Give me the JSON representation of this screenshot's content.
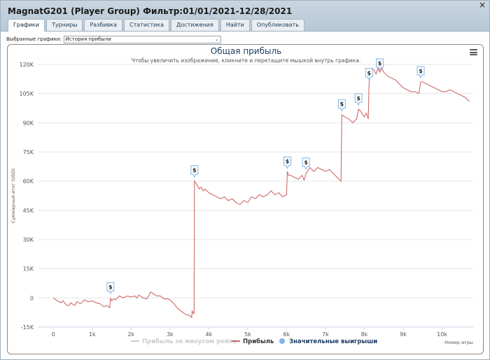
{
  "window": {
    "title": "MagnatG201 (Player Group) Фильтр:01/01/2021-12/28/2021",
    "close_label": "×"
  },
  "tabs": [
    {
      "label": "Графики",
      "active": true
    },
    {
      "label": "Турниры"
    },
    {
      "label": "Разбивка"
    },
    {
      "label": "Статистика"
    },
    {
      "label": "Достижения"
    },
    {
      "label": "Найти"
    },
    {
      "label": "Опубликовать"
    }
  ],
  "selector": {
    "label": "Выбранные графики:",
    "value": "История прибыли"
  },
  "chart_menu_icon": "hamburger-menu-icon",
  "chart_data": {
    "type": "line",
    "title": "Общая прибыль",
    "subtitle": "Чтобы увеличить изображение, кликните и перетащите мышкой внутрь графика.",
    "xlabel": "Номер игры",
    "ylabel": "Суммарный итог (USD)",
    "xlim": [
      -400,
      10800
    ],
    "ylim": [
      -15000,
      120000
    ],
    "x_ticks": [
      "0",
      "1k",
      "2k",
      "3k",
      "4k",
      "5k",
      "6k",
      "7k",
      "8k",
      "9k",
      "10k"
    ],
    "y_ticks": [
      "-15K",
      "0",
      "15K",
      "30K",
      "45K",
      "60K",
      "75K",
      "90K",
      "105K",
      "120K"
    ],
    "colors": {
      "profit": "#d06a6a",
      "rake": "#d0d0d0",
      "big_win": "#7cb5ec",
      "title": "#1f3e63"
    },
    "legend": [
      {
        "name": "Прибыль за минусом рейка",
        "color": "#cccccc",
        "symbol": "line",
        "hidden": true
      },
      {
        "name": "Прибыль",
        "color": "#d06a6a",
        "symbol": "line"
      },
      {
        "name": "Значительные выигрыши",
        "color": "#7cb5ec",
        "symbol": "circle"
      }
    ],
    "series": [
      {
        "name": "Прибыль",
        "points": [
          [
            0,
            0
          ],
          [
            100,
            -1500
          ],
          [
            200,
            -2500
          ],
          [
            250,
            -1500
          ],
          [
            330,
            -3500
          ],
          [
            400,
            -4000
          ],
          [
            450,
            -2500
          ],
          [
            550,
            -4000
          ],
          [
            600,
            -2000
          ],
          [
            700,
            -3000
          ],
          [
            800,
            -1000
          ],
          [
            900,
            -2000
          ],
          [
            1000,
            -1500
          ],
          [
            1100,
            -2500
          ],
          [
            1200,
            -3000
          ],
          [
            1300,
            -4500
          ],
          [
            1380,
            -4000
          ],
          [
            1450,
            -5000
          ],
          [
            1470,
            0
          ],
          [
            1500,
            -1500
          ],
          [
            1550,
            -500
          ],
          [
            1600,
            -1000
          ],
          [
            1700,
            1000
          ],
          [
            1800,
            0
          ],
          [
            1900,
            1000
          ],
          [
            2000,
            500
          ],
          [
            2100,
            1000
          ],
          [
            2150,
            0
          ],
          [
            2200,
            1500
          ],
          [
            2300,
            0
          ],
          [
            2400,
            -500
          ],
          [
            2450,
            1000
          ],
          [
            2500,
            3000
          ],
          [
            2550,
            2500
          ],
          [
            2650,
            1000
          ],
          [
            2750,
            1000
          ],
          [
            2850,
            -500
          ],
          [
            2950,
            -500
          ],
          [
            3000,
            -1000
          ],
          [
            3100,
            -3000
          ],
          [
            3200,
            -5500
          ],
          [
            3300,
            -7000
          ],
          [
            3400,
            -8500
          ],
          [
            3500,
            -9000
          ],
          [
            3560,
            -10000
          ],
          [
            3570,
            -6500
          ],
          [
            3600,
            -8000
          ],
          [
            3620,
            -8000
          ],
          [
            3630,
            60000
          ],
          [
            3700,
            58000
          ],
          [
            3750,
            56000
          ],
          [
            3800,
            57000
          ],
          [
            3850,
            55000
          ],
          [
            3900,
            56000
          ],
          [
            4000,
            54000
          ],
          [
            4100,
            53000
          ],
          [
            4200,
            52000
          ],
          [
            4300,
            51000
          ],
          [
            4400,
            52000
          ],
          [
            4500,
            50000
          ],
          [
            4600,
            51000
          ],
          [
            4700,
            49000
          ],
          [
            4800,
            48000
          ],
          [
            4900,
            50000
          ],
          [
            5000,
            49000
          ],
          [
            5100,
            52000
          ],
          [
            5200,
            51000
          ],
          [
            5300,
            53000
          ],
          [
            5400,
            52000
          ],
          [
            5500,
            53000
          ],
          [
            5600,
            55000
          ],
          [
            5700,
            53000
          ],
          [
            5800,
            54000
          ],
          [
            5900,
            52000
          ],
          [
            6000,
            53000
          ],
          [
            6020,
            65000
          ],
          [
            6050,
            63000
          ],
          [
            6100,
            63000
          ],
          [
            6200,
            62000
          ],
          [
            6300,
            61000
          ],
          [
            6400,
            63000
          ],
          [
            6450,
            60500
          ],
          [
            6500,
            64000
          ],
          [
            6600,
            67000
          ],
          [
            6650,
            66000
          ],
          [
            6700,
            65000
          ],
          [
            6800,
            67000
          ],
          [
            6900,
            66000
          ],
          [
            7000,
            65000
          ],
          [
            7100,
            66000
          ],
          [
            7200,
            64000
          ],
          [
            7300,
            62000
          ],
          [
            7400,
            60000
          ],
          [
            7420,
            94000
          ],
          [
            7500,
            93000
          ],
          [
            7600,
            92000
          ],
          [
            7700,
            90000
          ],
          [
            7800,
            92000
          ],
          [
            7850,
            97000
          ],
          [
            7900,
            96000
          ],
          [
            8000,
            93000
          ],
          [
            8050,
            95000
          ],
          [
            8100,
            92000
          ],
          [
            8120,
            110000
          ],
          [
            8150,
            115000
          ],
          [
            8200,
            118000
          ],
          [
            8250,
            117000
          ],
          [
            8300,
            115000
          ],
          [
            8350,
            118000
          ],
          [
            8400,
            116000
          ],
          [
            8450,
            118000
          ],
          [
            8500,
            116000
          ],
          [
            8600,
            114000
          ],
          [
            8700,
            113000
          ],
          [
            8800,
            112000
          ],
          [
            8900,
            110000
          ],
          [
            9000,
            108000
          ],
          [
            9100,
            107000
          ],
          [
            9200,
            106000
          ],
          [
            9300,
            106000
          ],
          [
            9400,
            105000
          ],
          [
            9450,
            111000
          ],
          [
            9500,
            111000
          ],
          [
            9600,
            110000
          ],
          [
            9700,
            109000
          ],
          [
            9800,
            108000
          ],
          [
            9900,
            107000
          ],
          [
            10000,
            106000
          ],
          [
            10100,
            106000
          ],
          [
            10200,
            107000
          ],
          [
            10300,
            106000
          ],
          [
            10400,
            105000
          ],
          [
            10500,
            104000
          ],
          [
            10600,
            103000
          ],
          [
            10700,
            101000
          ]
        ]
      },
      {
        "name": "Значительные выигрыши",
        "symbol": "$",
        "points": [
          [
            1470,
            0
          ],
          [
            3630,
            60000
          ],
          [
            6020,
            64500
          ],
          [
            6500,
            64000
          ],
          [
            7420,
            94000
          ],
          [
            7850,
            97000
          ],
          [
            8120,
            110000
          ],
          [
            8400,
            118000
          ],
          [
            9450,
            111000
          ]
        ]
      }
    ]
  }
}
